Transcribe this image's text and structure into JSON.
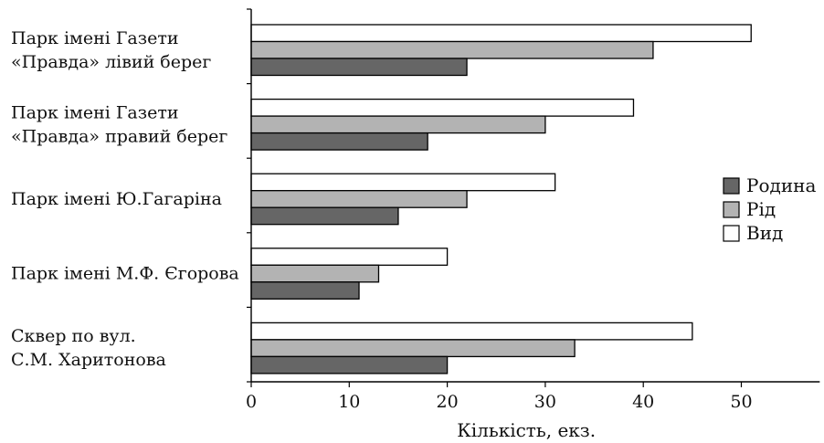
{
  "chart_data": {
    "type": "bar",
    "orientation": "horizontal",
    "categories": [
      [
        "Парк імені Газети",
        "«Правда» лівий берег"
      ],
      [
        "Парк імені Газети",
        "«Правда» правий берег"
      ],
      [
        "Парк імені Ю.Гагаріна"
      ],
      [
        "Парк імені М.Ф. Єгорова"
      ],
      [
        "Сквер по вул.",
        "С.М. Харитонова"
      ]
    ],
    "series": [
      {
        "name": "Вид",
        "values": [
          51,
          39,
          31,
          20,
          45
        ],
        "color": "#ffffff"
      },
      {
        "name": "Рід",
        "values": [
          41,
          30,
          22,
          13,
          33
        ],
        "color": "#b3b3b3"
      },
      {
        "name": "Родина",
        "values": [
          22,
          18,
          15,
          11,
          20
        ],
        "color": "#666666"
      }
    ],
    "legend_order": [
      "Родина",
      "Рід",
      "Вид"
    ],
    "legend_position": "right",
    "xlim": [
      0,
      58
    ],
    "xticks": [
      0,
      10,
      20,
      30,
      40,
      50
    ],
    "xlabel": "Кількість, екз.",
    "ylabel": "",
    "title": "",
    "grid": false,
    "bar_edge_color": "#000000"
  }
}
